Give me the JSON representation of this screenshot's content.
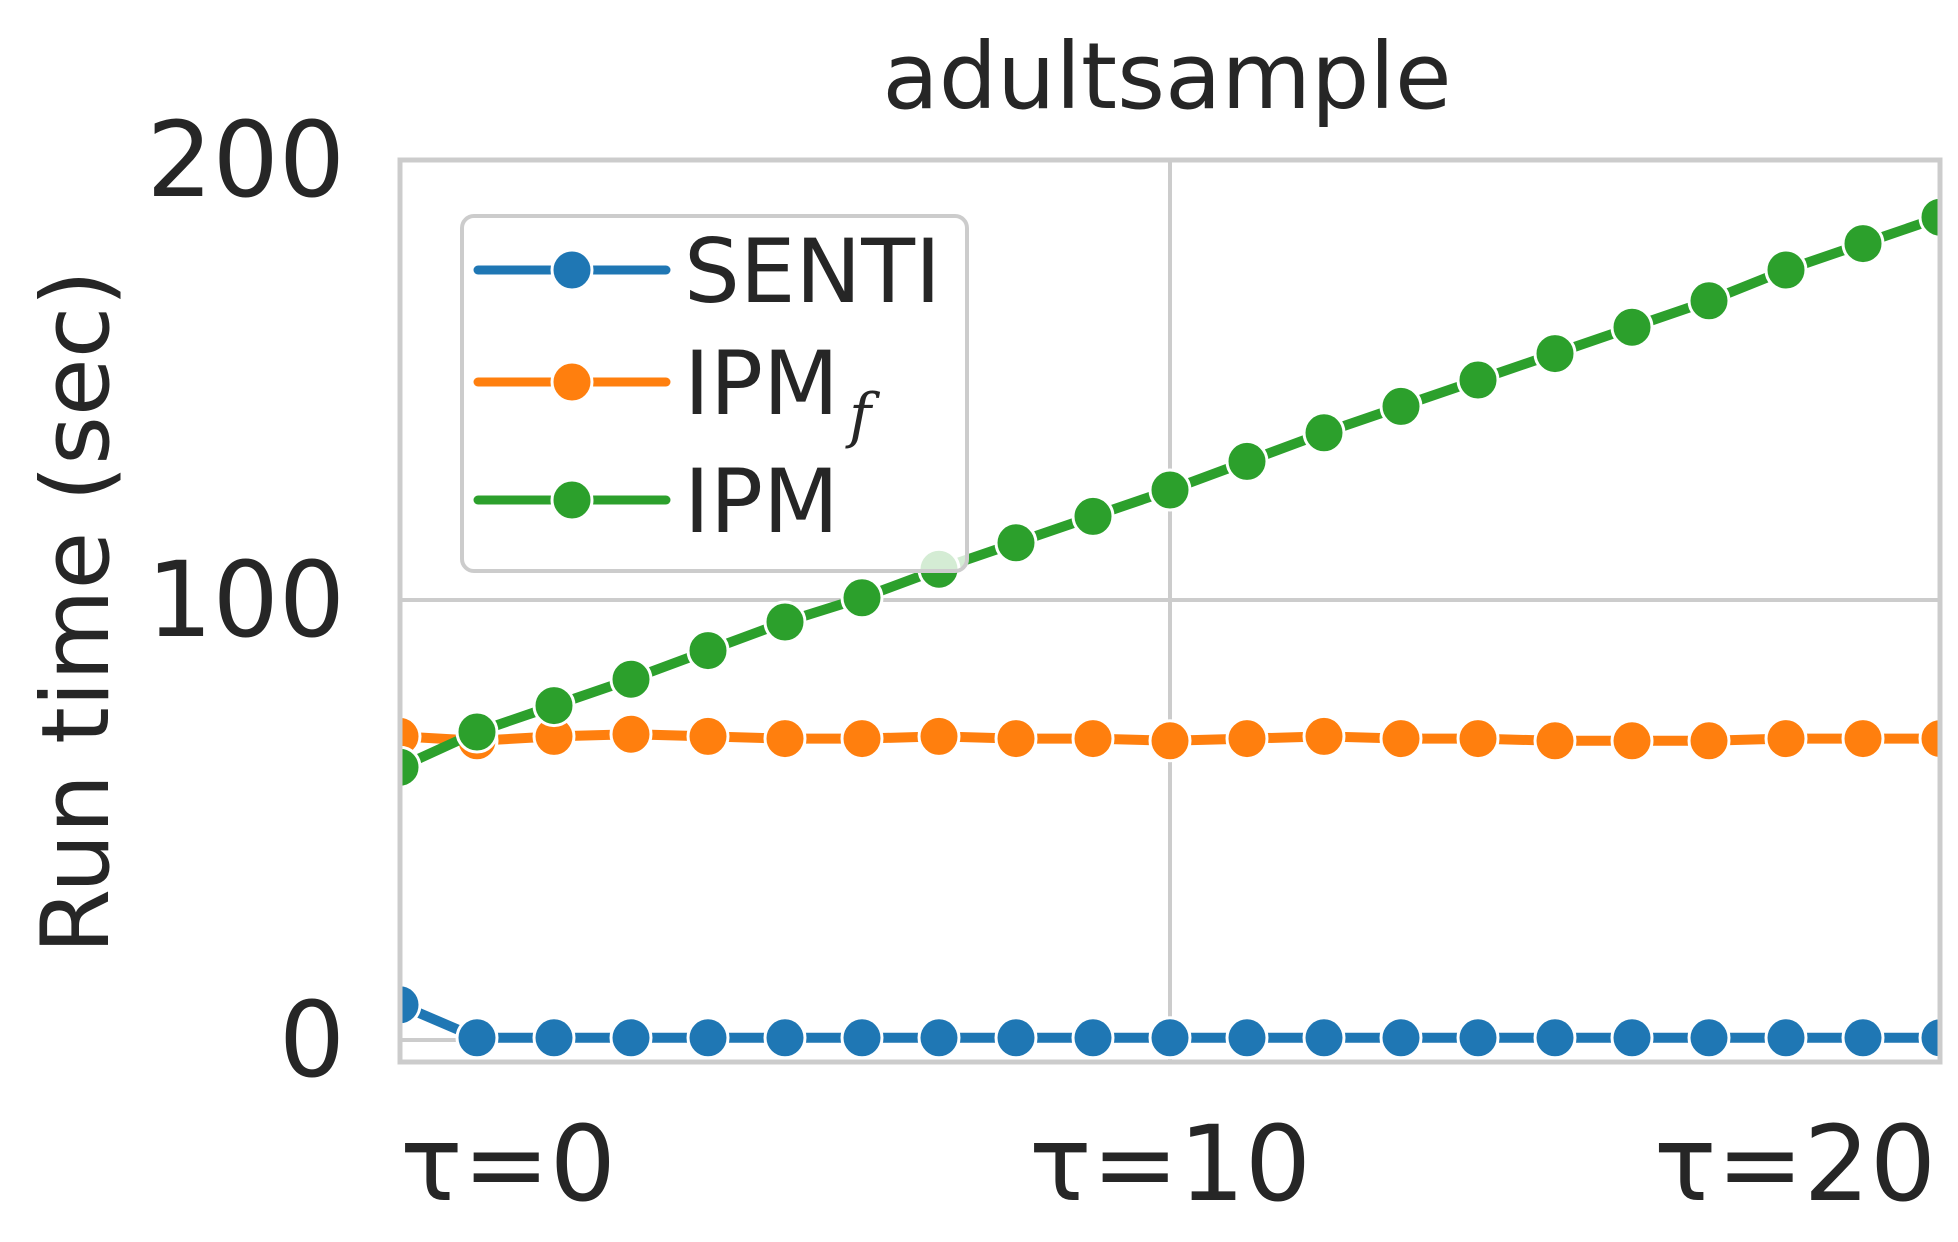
{
  "chart_data": {
    "type": "line",
    "title": "adultsample",
    "xlabel": "",
    "ylabel": "Run time (sec)",
    "x": [
      0,
      1,
      2,
      3,
      4,
      5,
      6,
      7,
      8,
      9,
      10,
      11,
      12,
      13,
      14,
      15,
      16,
      17,
      18,
      19,
      20
    ],
    "xlim": [
      0,
      20
    ],
    "ylim": [
      -5,
      200
    ],
    "x_ticks": [
      {
        "value": 0,
        "label": "τ=0"
      },
      {
        "value": 10,
        "label": "τ=10"
      },
      {
        "value": 20,
        "label": "τ=20"
      }
    ],
    "y_ticks": [
      {
        "value": 0,
        "label": "0"
      },
      {
        "value": 100,
        "label": "100"
      },
      {
        "value": 200,
        "label": "200"
      }
    ],
    "grid": true,
    "legend_position": "top-left",
    "series": [
      {
        "name": "SENTI",
        "color": "#1f77b4",
        "values": [
          8,
          0.5,
          0.5,
          0.5,
          0.5,
          0.5,
          0.5,
          0.5,
          0.5,
          0.5,
          0.5,
          0.5,
          0.5,
          0.5,
          0.5,
          0.5,
          0.5,
          0.5,
          0.5,
          0.5,
          0.5
        ]
      },
      {
        "name": "IPM",
        "name_subscript": "f",
        "color": "#ff7f0e",
        "values": [
          69,
          68,
          69,
          69.5,
          69,
          68.5,
          68.5,
          69,
          68.5,
          68.5,
          68,
          68.5,
          69,
          68.5,
          68.5,
          68,
          68,
          68,
          68.5,
          68.5,
          68.5
        ]
      },
      {
        "name": "IPM",
        "color": "#2ca02c",
        "values": [
          62,
          70,
          76,
          82,
          88.5,
          95,
          100.5,
          107,
          113,
          119,
          125,
          131.5,
          138,
          144,
          150,
          156,
          162,
          168,
          175,
          181,
          187
        ]
      }
    ]
  }
}
